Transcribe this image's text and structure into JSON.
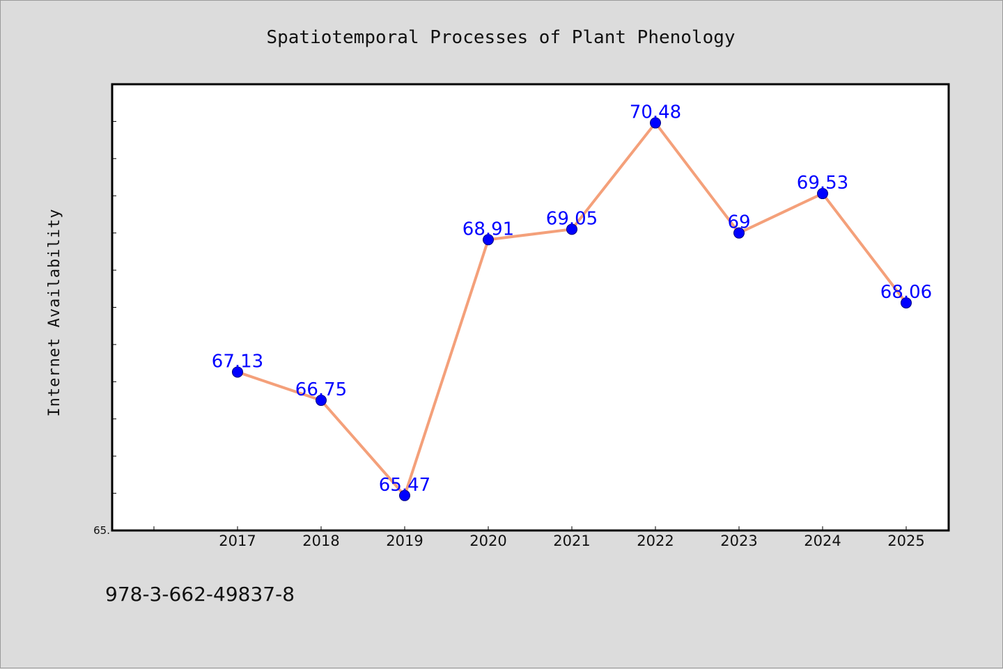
{
  "chart_data": {
    "type": "line",
    "title": "Spatiotemporal Processes of Plant Phenology",
    "xlabel": "",
    "ylabel": "Internet Availability",
    "categories": [
      "2017",
      "2018",
      "2019",
      "2020",
      "2021",
      "2022",
      "2023",
      "2024",
      "2025"
    ],
    "series": [
      {
        "values": [
          67.13,
          66.75,
          65.47,
          68.91,
          69.05,
          70.48,
          69,
          69.53,
          68.06
        ],
        "labels": [
          "67.13",
          "66.75",
          "65.47",
          "68.91",
          "69.05",
          "70.48",
          "69",
          "69.53",
          "68.06"
        ]
      }
    ],
    "ylim": [
      65,
      71
    ],
    "ytick_labels": [
      {
        "value": 65,
        "label": "65."
      }
    ],
    "y_minor_tick_step": 0.5,
    "grid": false,
    "legend": "none",
    "colors": {
      "line": "#f4a07a",
      "marker": "#0000ff",
      "marker_edge": "#000080",
      "data_label": "#0000ff",
      "plot_background": "#ffffff",
      "figure_background": "#dcdcdc"
    }
  },
  "footer": {
    "code": "978-3-662-49837-8"
  }
}
